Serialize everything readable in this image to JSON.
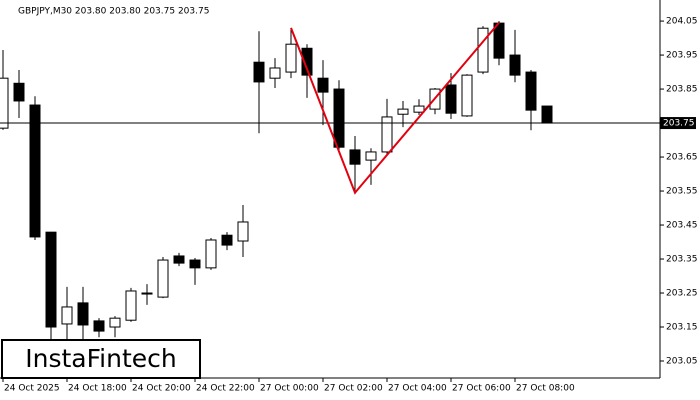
{
  "chart_data": {
    "type": "candlestick",
    "title": "GBPJPY,M30  203.80 203.80 203.75 203.75",
    "categories": [
      "24 Oct 2025",
      null,
      null,
      null,
      "24 Oct 18:00",
      null,
      null,
      null,
      "24 Oct 20:00",
      null,
      null,
      null,
      "24 Oct 22:00",
      null,
      null,
      null,
      "27 Oct 00:00",
      null,
      null,
      null,
      "27 Oct 02:00",
      null,
      null,
      null,
      "27 Oct 04:00",
      null,
      null,
      null,
      "27 Oct 06:00",
      null,
      null,
      null,
      "27 Oct 08:00",
      null,
      null
    ],
    "open": [
      203.735,
      203.867,
      203.803,
      203.429,
      203.159,
      203.221,
      203.168,
      203.15,
      203.17,
      203.247,
      203.238,
      203.359,
      203.347,
      203.324,
      203.42,
      203.403,
      203.929,
      203.882,
      203.9,
      203.97,
      203.882,
      203.85,
      203.671,
      203.641,
      203.665,
      203.776,
      203.782,
      203.791,
      203.862,
      203.771,
      203.9,
      204.044,
      203.95,
      203.9,
      203.8
    ],
    "high": [
      203.965,
      203.906,
      203.829,
      203.43,
      203.268,
      203.268,
      203.176,
      203.182,
      203.265,
      203.276,
      203.356,
      203.368,
      203.353,
      203.412,
      203.429,
      203.509,
      204.02,
      203.941,
      204.029,
      203.982,
      203.935,
      203.876,
      203.712,
      203.676,
      203.821,
      203.815,
      203.82,
      203.853,
      203.897,
      203.894,
      204.035,
      204.05,
      204.024,
      203.906,
      203.8
    ],
    "low": [
      203.73,
      203.765,
      203.406,
      203.112,
      203.112,
      203.112,
      203.12,
      203.12,
      203.165,
      203.215,
      203.235,
      203.329,
      203.274,
      203.318,
      203.376,
      203.356,
      203.72,
      203.853,
      203.882,
      203.824,
      203.744,
      203.671,
      203.541,
      203.568,
      203.656,
      203.738,
      203.774,
      203.776,
      203.762,
      203.768,
      203.894,
      203.92,
      203.87,
      203.729,
      203.75
    ],
    "close": [
      203.882,
      203.815,
      203.415,
      203.15,
      203.209,
      203.156,
      203.138,
      203.176,
      203.256,
      203.25,
      203.347,
      203.338,
      203.324,
      203.406,
      203.391,
      203.459,
      203.871,
      203.912,
      203.982,
      203.891,
      203.841,
      203.679,
      203.629,
      203.665,
      203.768,
      203.791,
      203.8,
      203.85,
      203.779,
      203.891,
      204.029,
      203.941,
      203.891,
      203.788,
      203.75
    ],
    "ylim": [
      203.0,
      204.112
    ],
    "yticks": [
      203.05,
      203.15,
      203.25,
      203.35,
      203.45,
      203.55,
      203.65,
      203.85,
      203.95,
      204.05
    ],
    "current_price": 203.75,
    "pattern": {
      "color": "#e3000f",
      "points": [
        [
          18,
          204.03
        ],
        [
          22,
          203.545
        ],
        [
          31,
          204.045
        ]
      ]
    },
    "logo": "InstaFintech"
  }
}
